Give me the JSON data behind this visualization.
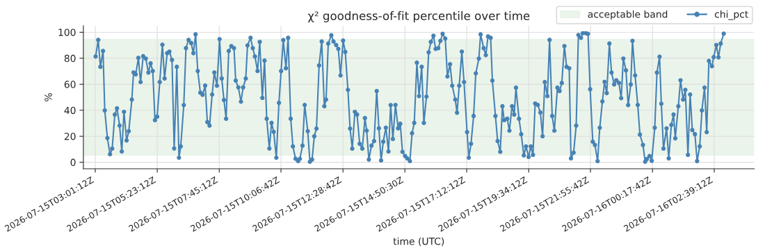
{
  "chart_data": {
    "type": "line",
    "title": "χ² goodness-of-fit percentile over time",
    "xlabel": "time (UTC)",
    "ylabel": "%",
    "xlim": [
      "2026-07-15T02:34",
      "2026-07-16T04:11"
    ],
    "ylim": [
      -5,
      105
    ],
    "xticks": [
      {
        "value": "2026-07-15T03:01:12",
        "label": "2026-07-15T03:01:12Z"
      },
      {
        "value": "2026-07-15T05:23:12",
        "label": "2026-07-15T05:23:12Z"
      },
      {
        "value": "2026-07-15T07:45:12",
        "label": "2026-07-15T07:45:12Z"
      },
      {
        "value": "2026-07-15T10:06:42",
        "label": "2026-07-15T10:06:42Z"
      },
      {
        "value": "2026-07-15T12:28:42",
        "label": "2026-07-15T12:28:42Z"
      },
      {
        "value": "2026-07-15T14:50:30",
        "label": "2026-07-15T14:50:30Z"
      },
      {
        "value": "2026-07-15T17:12:12",
        "label": "2026-07-15T17:12:12Z"
      },
      {
        "value": "2026-07-15T19:34:12",
        "label": "2026-07-15T19:34:12Z"
      },
      {
        "value": "2026-07-15T21:55:42",
        "label": "2026-07-15T21:55:42Z"
      },
      {
        "value": "2026-07-16T00:17:42",
        "label": "2026-07-16T00:17:42Z"
      },
      {
        "value": "2026-07-16T02:39:12",
        "label": "2026-07-16T02:39:12Z"
      }
    ],
    "yticks": [
      0,
      20,
      40,
      60,
      80,
      100
    ],
    "grid": true,
    "legend": "top right",
    "marker": "circle",
    "line_style": "solid",
    "bands": [
      {
        "axis": "y",
        "from": 5,
        "to": 95,
        "label": "acceptable band",
        "color": "#eaf4ea"
      }
    ],
    "series": [
      {
        "name": "chi_pct",
        "color": "#4682b4",
        "x": [
          "2026-07-15T03:02",
          "2026-07-15T03:08",
          "2026-07-15T03:13",
          "2026-07-15T03:19",
          "2026-07-15T03:23",
          "2026-07-15T03:29",
          "2026-07-15T03:35",
          "2026-07-15T03:40",
          "2026-07-15T03:46",
          "2026-07-15T03:51",
          "2026-07-15T03:57",
          "2026-07-15T04:02",
          "2026-07-15T04:07",
          "2026-07-15T04:13",
          "2026-07-15T04:18",
          "2026-07-15T04:25",
          "2026-07-15T04:29",
          "2026-07-15T04:34",
          "2026-07-15T04:40",
          "2026-07-15T04:45",
          "2026-07-15T04:51",
          "2026-07-15T04:57",
          "2026-07-15T05:03",
          "2026-07-15T05:08",
          "2026-07-15T05:13",
          "2026-07-15T05:18",
          "2026-07-15T05:23",
          "2026-07-15T05:29",
          "2026-07-15T05:35",
          "2026-07-15T05:40",
          "2026-07-15T05:46",
          "2026-07-15T05:51",
          "2026-07-15T05:57",
          "2026-07-15T06:02",
          "2026-07-15T06:08",
          "2026-07-15T06:13",
          "2026-07-15T06:17",
          "2026-07-15T06:24",
          "2026-07-15T06:29",
          "2026-07-15T06:35",
          "2026-07-15T06:41",
          "2026-07-15T06:46",
          "2026-07-15T06:51",
          "2026-07-15T06:56",
          "2026-07-15T07:02",
          "2026-07-15T07:07",
          "2026-07-15T07:13",
          "2026-07-15T07:18",
          "2026-07-15T07:23",
          "2026-07-15T07:29",
          "2026-07-15T07:34",
          "2026-07-15T07:40",
          "2026-07-15T07:46",
          "2026-07-15T07:51",
          "2026-07-15T07:56",
          "2026-07-15T08:01",
          "2026-07-15T08:07",
          "2026-07-15T08:13",
          "2026-07-15T08:19",
          "2026-07-15T08:23",
          "2026-07-15T08:29",
          "2026-07-15T08:35",
          "2026-07-15T08:40",
          "2026-07-15T08:46",
          "2026-07-15T08:50",
          "2026-07-15T08:57",
          "2026-07-15T09:02",
          "2026-07-15T09:07",
          "2026-07-15T09:13",
          "2026-07-15T09:18",
          "2026-07-15T09:24",
          "2026-07-15T09:29",
          "2026-07-15T09:34",
          "2026-07-15T09:40",
          "2026-07-15T09:45",
          "2026-07-15T09:50",
          "2026-07-15T09:56",
          "2026-07-15T10:02",
          "2026-07-15T10:07",
          "2026-07-15T10:12",
          "2026-07-15T10:18",
          "2026-07-15T10:23",
          "2026-07-15T10:29",
          "2026-07-15T10:34",
          "2026-07-15T10:40",
          "2026-07-15T10:46",
          "2026-07-15T10:50",
          "2026-07-15T10:56",
          "2026-07-15T11:01",
          "2026-07-15T11:08",
          "2026-07-15T11:13",
          "2026-07-15T11:18",
          "2026-07-15T11:23",
          "2026-07-15T11:28",
          "2026-07-15T11:34",
          "2026-07-15T11:40",
          "2026-07-15T11:46",
          "2026-07-15T11:50",
          "2026-07-15T11:55",
          "2026-07-15T12:02",
          "2026-07-15T12:07",
          "2026-07-15T12:13",
          "2026-07-15T12:18",
          "2026-07-15T12:23",
          "2026-07-15T12:29",
          "2026-07-15T12:34",
          "2026-07-15T12:40",
          "2026-07-15T12:45",
          "2026-07-15T12:50",
          "2026-07-15T12:56",
          "2026-07-15T13:01",
          "2026-07-15T13:07",
          "2026-07-15T13:13",
          "2026-07-15T13:19",
          "2026-07-15T13:23",
          "2026-07-15T13:28",
          "2026-07-15T13:34",
          "2026-07-15T13:40",
          "2026-07-15T13:46",
          "2026-07-15T13:51",
          "2026-07-15T13:56",
          "2026-07-15T14:01",
          "2026-07-15T14:07",
          "2026-07-15T14:13",
          "2026-07-15T14:18",
          "2026-07-15T14:23",
          "2026-07-15T14:29",
          "2026-07-15T14:35",
          "2026-07-15T14:40",
          "2026-07-15T14:45",
          "2026-07-15T14:51",
          "2026-07-15T14:56",
          "2026-07-15T15:02",
          "2026-07-15T15:07",
          "2026-07-15T15:12",
          "2026-07-15T15:18",
          "2026-07-15T15:23",
          "2026-07-15T15:29",
          "2026-07-15T15:34",
          "2026-07-15T15:40",
          "2026-07-15T15:45",
          "2026-07-15T15:50",
          "2026-07-15T15:56",
          "2026-07-15T16:01",
          "2026-07-15T16:07",
          "2026-07-15T16:12",
          "2026-07-15T16:17",
          "2026-07-15T16:23",
          "2026-07-15T16:28",
          "2026-07-15T16:34",
          "2026-07-15T16:39",
          "2026-07-15T16:46",
          "2026-07-15T16:50",
          "2026-07-15T16:55",
          "2026-07-15T17:01",
          "2026-07-15T17:06",
          "2026-07-15T17:13",
          "2026-07-15T17:17",
          "2026-07-15T17:22",
          "2026-07-15T17:28",
          "2026-07-15T17:33",
          "2026-07-15T17:40",
          "2026-07-15T17:44",
          "2026-07-15T17:51",
          "2026-07-15T17:56",
          "2026-07-15T18:01",
          "2026-07-15T18:07",
          "2026-07-15T18:11",
          "2026-07-15T18:18",
          "2026-07-15T18:23",
          "2026-07-15T18:29",
          "2026-07-15T18:34",
          "2026-07-15T18:38",
          "2026-07-15T18:45",
          "2026-07-15T18:50",
          "2026-07-15T18:56",
          "2026-07-15T19:01",
          "2026-07-15T19:05",
          "2026-07-15T19:12",
          "2026-07-15T19:17",
          "2026-07-15T19:23",
          "2026-07-15T19:28",
          "2026-07-15T19:34",
          "2026-07-15T19:39",
          "2026-07-15T19:44",
          "2026-07-15T19:49",
          "2026-07-15T19:55",
          "2026-07-15T20:01",
          "2026-07-15T20:06",
          "2026-07-15T20:11",
          "2026-07-15T20:17",
          "2026-07-15T20:22",
          "2026-07-15T20:28",
          "2026-07-15T20:33",
          "2026-07-15T20:40",
          "2026-07-15T20:45",
          "2026-07-15T20:50",
          "2026-07-15T20:56",
          "2026-07-15T21:01",
          "2026-07-15T21:07",
          "2026-07-15T21:11",
          "2026-07-15T21:17",
          "2026-07-15T21:23",
          "2026-07-15T21:28",
          "2026-07-15T21:34",
          "2026-07-15T21:38",
          "2026-07-15T21:45",
          "2026-07-15T21:50",
          "2026-07-15T21:55",
          "2026-07-15T22:01",
          "2026-07-15T22:06",
          "2026-07-15T22:12",
          "2026-07-15T22:17",
          "2026-07-15T22:23",
          "2026-07-15T22:28",
          "2026-07-15T22:33",
          "2026-07-15T22:39",
          "2026-07-15T22:44",
          "2026-07-15T22:50",
          "2026-07-15T22:55",
          "2026-07-15T23:01",
          "2026-07-15T23:06",
          "2026-07-15T23:11",
          "2026-07-15T23:17",
          "2026-07-15T23:22",
          "2026-07-15T23:28",
          "2026-07-15T23:32",
          "2026-07-15T23:38",
          "2026-07-15T23:44",
          "2026-07-15T23:49",
          "2026-07-15T23:56",
          "2026-07-16T00:01",
          "2026-07-16T00:05",
          "2026-07-16T00:11",
          "2026-07-16T00:16",
          "2026-07-16T00:23",
          "2026-07-16T00:28",
          "2026-07-16T00:34",
          "2026-07-16T00:38",
          "2026-07-16T00:43",
          "2026-07-16T00:50",
          "2026-07-16T00:55",
          "2026-07-16T01:01",
          "2026-07-16T01:06",
          "2026-07-16T01:10",
          "2026-07-16T01:17",
          "2026-07-16T01:22",
          "2026-07-16T01:28",
          "2026-07-16T01:33",
          "2026-07-16T01:39",
          "2026-07-16T01:44",
          "2026-07-16T01:49",
          "2026-07-16T01:55",
          "2026-07-16T02:00",
          "2026-07-16T02:06",
          "2026-07-16T02:11",
          "2026-07-16T02:17",
          "2026-07-16T02:22",
          "2026-07-16T02:27",
          "2026-07-16T02:34",
          "2026-07-16T02:38",
          "2026-07-16T02:44",
          "2026-07-16T02:49",
          "2026-07-16T02:54",
          "2026-07-16T03:01"
        ],
        "values": [
          81.4,
          94.1,
          73.4,
          85.6,
          39.9,
          18.6,
          6.2,
          10.5,
          36.7,
          41.5,
          28.2,
          8.3,
          38.8,
          16.8,
          23.9,
          48.2,
          69.1,
          67.6,
          80.3,
          61.7,
          81.6,
          79.8,
          69.0,
          76.1,
          70.2,
          32.4,
          35.1,
          61.7,
          90.4,
          64.4,
          83.9,
          85.1,
          78.7,
          10.6,
          73.4,
          3.5,
          12.2,
          44.0,
          87.8,
          94.1,
          91.7,
          83.9,
          98.4,
          70.2,
          53.5,
          51.9,
          59.0,
          30.9,
          28.2,
          52.1,
          69.1,
          58.9,
          94.7,
          64.4,
          47.9,
          33.5,
          85.6,
          89.4,
          87.8,
          62.8,
          57.6,
          46.6,
          57.6,
          64.4,
          89.9,
          95.7,
          87.8,
          81.4,
          70.2,
          92.6,
          49.5,
          78.2,
          33.5,
          10.6,
          30.3,
          23.4,
          3.5,
          45.7,
          70.2,
          94.0,
          72.3,
          95.7,
          33.5,
          12.2,
          2.7,
          0.9,
          2.7,
          12.8,
          44.1,
          23.9,
          0.4,
          2.1,
          20.0,
          25.9,
          74.5,
          92.9,
          43.1,
          48.2,
          91.3,
          97.7,
          92.9,
          90.2,
          87.2,
          66.8,
          93.6,
          84.9,
          55.7,
          25.9,
          10.5,
          38.8,
          36.7,
          14.2,
          10.5,
          34.0,
          24.3,
          2.1,
          12.8,
          16.3,
          54.8,
          26.1,
          1.4,
          15.8,
          26.6,
          8.3,
          44.0,
          17.9,
          44.1,
          26.1,
          29.6,
          8.0,
          4.8,
          3.0,
          0.9,
          22.3,
          30.3,
          76.6,
          50.9,
          73.4,
          30.3,
          50.5,
          84.6,
          92.6,
          97.3,
          87.2,
          87.8,
          93.4,
          98.8,
          95.2,
          66.0,
          75.4,
          58.9,
          48.2,
          38.1,
          58.9,
          85.1,
          61.7,
          23.2,
          3.5,
          14.2,
          35.6,
          68.4,
          79.8,
          98.4,
          87.8,
          82.4,
          96.8,
          95.7,
          62.8,
          35.6,
          16.3,
          8.0,
          43.1,
          32.4,
          33.5,
          24.3,
          43.1,
          36.7,
          57.4,
          33.5,
          21.6,
          5.3,
          12.2,
          4.1,
          12.2,
          5.7,
          45.2,
          44.1,
          38.3,
          20.0,
          61.7,
          50.9,
          94.1,
          35.6,
          24.3,
          57.4,
          54.8,
          61.0,
          89.4,
          73.4,
          72.3,
          3.0,
          7.4,
          28.2,
          97.9,
          95.7,
          99.3,
          99.3,
          98.8,
          56.2,
          15.8,
          13.3,
          0.9,
          26.6,
          46.8,
          61.9,
          53.2,
          91.3,
          69.0,
          59.9,
          63.1,
          61.0,
          49.3,
          79.8,
          70.7,
          44.0,
          59.9,
          93.4,
          66.8,
          44.1,
          21.3,
          13.3,
          0.4,
          2.5,
          4.8,
          1.1,
          26.6,
          69.0,
          81.2,
          45.0,
          10.5,
          26.1,
          3.0,
          28.7,
          36.7,
          18.4,
          43.1,
          63.1,
          48.2,
          55.7,
          5.7,
          52.1,
          24.8,
          21.6,
          0.9,
          12.2,
          39.9,
          57.4,
          23.2,
          78.0,
          73.9,
          80.9,
          90.2,
          80.7,
          91.3,
          98.9
        ]
      }
    ]
  }
}
